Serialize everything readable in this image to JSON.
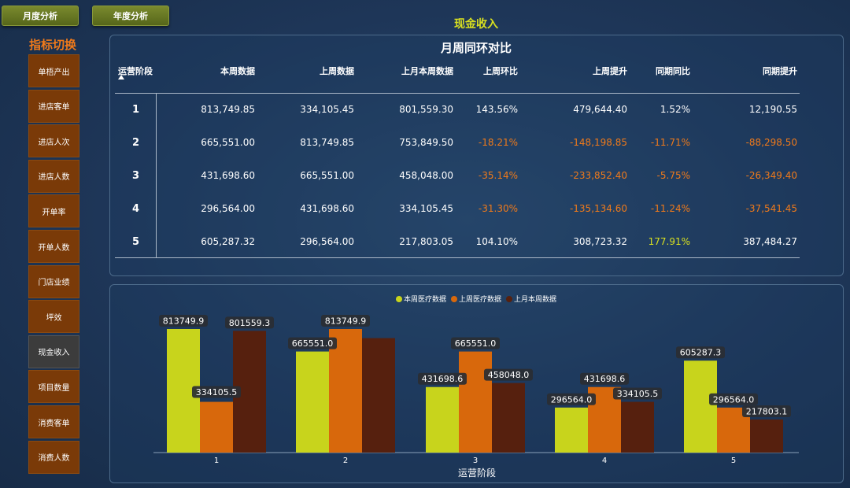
{
  "tabs": {
    "monthly": "月度分析",
    "yearly": "年度分析"
  },
  "sidebar": {
    "title": "指标切换",
    "items": [
      "单梧产出",
      "进店客单",
      "进店人次",
      "进店人数",
      "开单率",
      "开单人数",
      "门店业绩",
      "坪效",
      "现金收入",
      "项目数量",
      "消费客单",
      "消费人数"
    ],
    "active_index": 8
  },
  "page_title": "现金收入",
  "table": {
    "title": "月周同环对比",
    "headers": [
      "运营阶段",
      "本周数据",
      "上周数据",
      "上月本周数据",
      "上周环比",
      "上周提升",
      "同期同比",
      "同期提升"
    ],
    "rows": [
      [
        "1",
        "813,749.85",
        "334,105.45",
        "801,559.30",
        "143.56%",
        "479,644.40",
        "1.52%",
        "12,190.55"
      ],
      [
        "2",
        "665,551.00",
        "813,749.85",
        "753,849.50",
        "-18.21%",
        "-148,198.85",
        "-11.71%",
        "-88,298.50"
      ],
      [
        "3",
        "431,698.60",
        "665,551.00",
        "458,048.00",
        "-35.14%",
        "-233,852.40",
        "-5.75%",
        "-26,349.40"
      ],
      [
        "4",
        "296,564.00",
        "431,698.60",
        "334,105.45",
        "-31.30%",
        "-135,134.60",
        "-11.24%",
        "-37,541.45"
      ],
      [
        "5",
        "605,287.32",
        "296,564.00",
        "217,803.05",
        "104.10%",
        "308,723.32",
        "177.91%",
        "387,484.27"
      ]
    ]
  },
  "chart_data": {
    "type": "bar",
    "categories": [
      "1",
      "2",
      "3",
      "4",
      "5"
    ],
    "series": [
      {
        "name": "本周医疗数据",
        "color": "#c8d41c",
        "values": [
          813749.9,
          665551.0,
          431698.6,
          296564.0,
          605287.3
        ],
        "labels": [
          "813749.9",
          "665551.0",
          "431698.6",
          "296564.0",
          "605287.3"
        ]
      },
      {
        "name": "上周医疗数据",
        "color": "#d8680c",
        "values": [
          334105.5,
          813749.9,
          665551.0,
          431698.6,
          296564.0
        ],
        "labels": [
          "334105.5",
          "813749.9",
          "665551.0",
          "431698.6",
          "296564.0"
        ]
      },
      {
        "name": "上月本周数据",
        "color": "#56200e",
        "values": [
          801559.3,
          753849.5,
          458048.0,
          334105.5,
          217803.1
        ],
        "labels": [
          "801559.3",
          "",
          "458048.0",
          "334105.5",
          "217803.1"
        ]
      }
    ],
    "xlabel": "运营阶段",
    "ylim": [
      0,
      830000
    ],
    "legend": "top-center"
  }
}
